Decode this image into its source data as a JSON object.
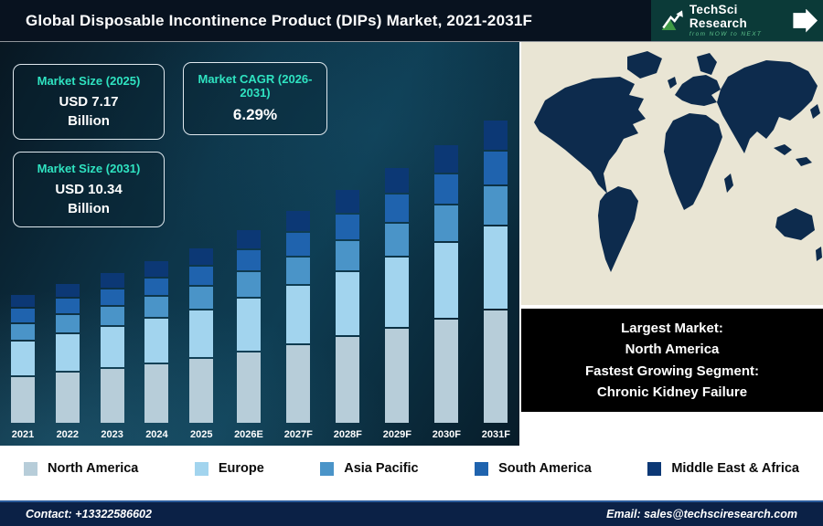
{
  "header": {
    "title": "Global Disposable Incontinence Product (DIPs) Market, 2021-2031F",
    "logo": {
      "name": "TechSci Research",
      "tagline": "from NOW to NEXT"
    }
  },
  "stats": [
    {
      "label": "Market Size (2025)",
      "value": "USD 7.17 Billion"
    },
    {
      "label": "Market CAGR (2026-2031)",
      "value": "6.29%"
    },
    {
      "label": "Market Size (2031)",
      "value": "USD 10.34 Billion"
    }
  ],
  "chart_data": {
    "type": "bar",
    "stacked": true,
    "title": "Global Disposable Incontinence Product (DIPs) Market, 2021-2031F",
    "unit": "USD Billion",
    "categories": [
      "2021",
      "2022",
      "2023",
      "2024",
      "2025",
      "2026E",
      "2027F",
      "2028F",
      "2029F",
      "2030F",
      "2031F"
    ],
    "totals": [
      6.0,
      6.27,
      6.55,
      6.85,
      7.17,
      7.62,
      8.1,
      8.61,
      9.15,
      9.73,
      10.34
    ],
    "series": [
      {
        "name": "North America",
        "color": "#b7cdd9",
        "values": [
          2.28,
          2.38,
          2.49,
          2.6,
          2.72,
          2.9,
          3.08,
          3.27,
          3.48,
          3.7,
          3.93
        ]
      },
      {
        "name": "Europe",
        "color": "#a2d4ee",
        "values": [
          1.68,
          1.76,
          1.83,
          1.92,
          2.01,
          2.13,
          2.27,
          2.41,
          2.56,
          2.72,
          2.9
        ]
      },
      {
        "name": "Asia Pacific",
        "color": "#4a94c8",
        "values": [
          0.78,
          0.82,
          0.85,
          0.89,
          0.93,
          0.99,
          1.05,
          1.12,
          1.19,
          1.26,
          1.34
        ]
      },
      {
        "name": "South America",
        "color": "#1f63ae",
        "values": [
          0.66,
          0.69,
          0.72,
          0.75,
          0.79,
          0.84,
          0.89,
          0.95,
          1.01,
          1.07,
          1.14
        ]
      },
      {
        "name": "Middle East & Africa",
        "color": "#0c3875",
        "values": [
          0.6,
          0.62,
          0.66,
          0.69,
          0.72,
          0.76,
          0.81,
          0.86,
          0.91,
          0.98,
          1.03
        ]
      }
    ],
    "ylim": [
      0,
      10.34
    ],
    "grid": false,
    "legend_position": "bottom"
  },
  "highlight": {
    "lines": [
      "Largest Market:",
      "North America",
      "Fastest Growing Segment:",
      "Chronic Kidney Failure"
    ]
  },
  "map": {
    "land_color": "#0d2b4d",
    "sea_color": "#e9e5d4"
  },
  "footer": {
    "contact": "Contact: +13322586602",
    "email": "Email: sales@techsciresearch.com"
  }
}
